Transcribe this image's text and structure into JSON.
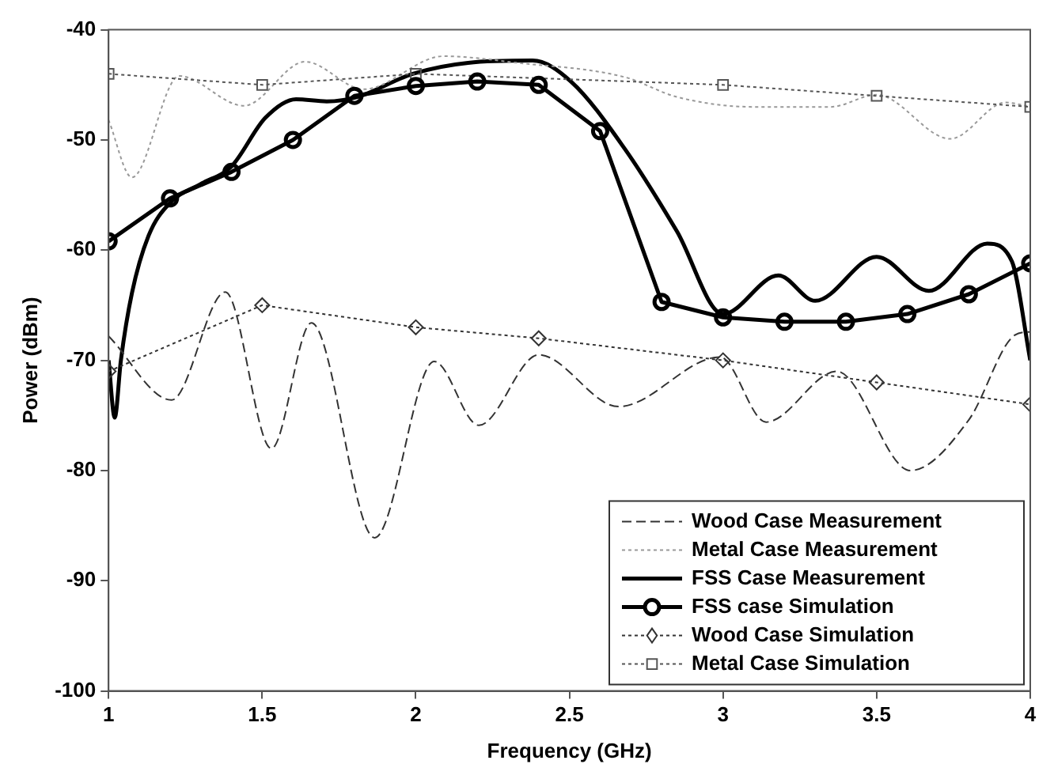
{
  "chart_data": {
    "type": "line",
    "xlabel": "Frequency (GHz)",
    "ylabel": "Power (dBm)",
    "xlim": [
      1,
      4
    ],
    "ylim": [
      -100,
      -40
    ],
    "xticks": [
      1,
      1.5,
      2,
      2.5,
      3,
      3.5,
      4
    ],
    "yticks": [
      -100,
      -90,
      -80,
      -70,
      -60,
      -50,
      -40
    ],
    "grid": false,
    "legend": "bottom right",
    "series": [
      {
        "name": "Wood Case Measurement",
        "color": "#333333",
        "line_style": "dashed",
        "marker": "none",
        "x": [
          1,
          1.205,
          1.38,
          1.53,
          1.66,
          1.866,
          2.06,
          2.205,
          2.4,
          2.66,
          2.99,
          3.14,
          3.37,
          3.61,
          3.8,
          3.95,
          4
        ],
        "values": [
          -67.8,
          -73.6,
          -63.8,
          -78,
          -66.6,
          -86.1,
          -70.1,
          -75.9,
          -69.5,
          -74.2,
          -69.7,
          -75.6,
          -71,
          -80,
          -75.4,
          -67.7,
          -67.4
        ]
      },
      {
        "name": "Metal Case Measurement",
        "color": "#999999",
        "line_style": "dotted",
        "marker": "none",
        "x": [
          1,
          1.076,
          1.23,
          1.44,
          1.64,
          1.83,
          2.09,
          2.33,
          2.68,
          2.85,
          3.1,
          3.35,
          3.5,
          3.74,
          3.92,
          4
        ],
        "values": [
          -48.2,
          -53.4,
          -44.2,
          -46.9,
          -42.9,
          -45.4,
          -42.4,
          -43,
          -44.3,
          -46.1,
          -47,
          -47,
          -45.9,
          -49.9,
          -46.6,
          -47
        ]
      },
      {
        "name": "FSS Case Measurement",
        "color": "#000000",
        "line_style": "solid",
        "marker": "none",
        "x": [
          1,
          1.02,
          1.04,
          1.076,
          1.13,
          1.2,
          1.3,
          1.4,
          1.51,
          1.61,
          1.71,
          1.81,
          1.99,
          2.17,
          2.38,
          2.505,
          2.68,
          2.85,
          3,
          3.18,
          3.3,
          3.5,
          3.67,
          3.86,
          3.94,
          4
        ],
        "values": [
          -70,
          -75.2,
          -70,
          -63.9,
          -58.7,
          -55.7,
          -54,
          -52.4,
          -48,
          -46.3,
          -46.5,
          -46.1,
          -44,
          -43,
          -42.8,
          -44.7,
          -50.8,
          -58.3,
          -65.8,
          -62.3,
          -64.6,
          -60.6,
          -63.7,
          -59.4,
          -61,
          -70
        ]
      },
      {
        "name": "FSS case Simulation",
        "color": "#000000",
        "line_style": "solid",
        "marker": "circle",
        "x": [
          1,
          1.2,
          1.4,
          1.6,
          1.8,
          2,
          2.2,
          2.4,
          2.6,
          2.8,
          3,
          3.2,
          3.4,
          3.6,
          3.8,
          4
        ],
        "values": [
          -59.2,
          -55.3,
          -52.9,
          -50,
          -46,
          -45.1,
          -44.7,
          -45,
          -49.2,
          -64.7,
          -66.1,
          -66.5,
          -66.5,
          -65.8,
          -64,
          -61.2
        ]
      },
      {
        "name": "Wood Case Simulation",
        "color": "#333333",
        "line_style": "dotted",
        "marker": "diamond",
        "x": [
          1,
          1.5,
          2,
          2.4,
          3,
          3.5,
          4
        ],
        "values": [
          -71,
          -65,
          -67,
          -68,
          -70,
          -72,
          -74
        ]
      },
      {
        "name": "Metal Case Simulation",
        "color": "#555555",
        "line_style": "dotted",
        "marker": "square",
        "x": [
          1,
          1.5,
          2,
          3,
          3.5,
          4
        ],
        "values": [
          -44,
          -45,
          -44,
          -45,
          -46,
          -47
        ]
      }
    ]
  }
}
